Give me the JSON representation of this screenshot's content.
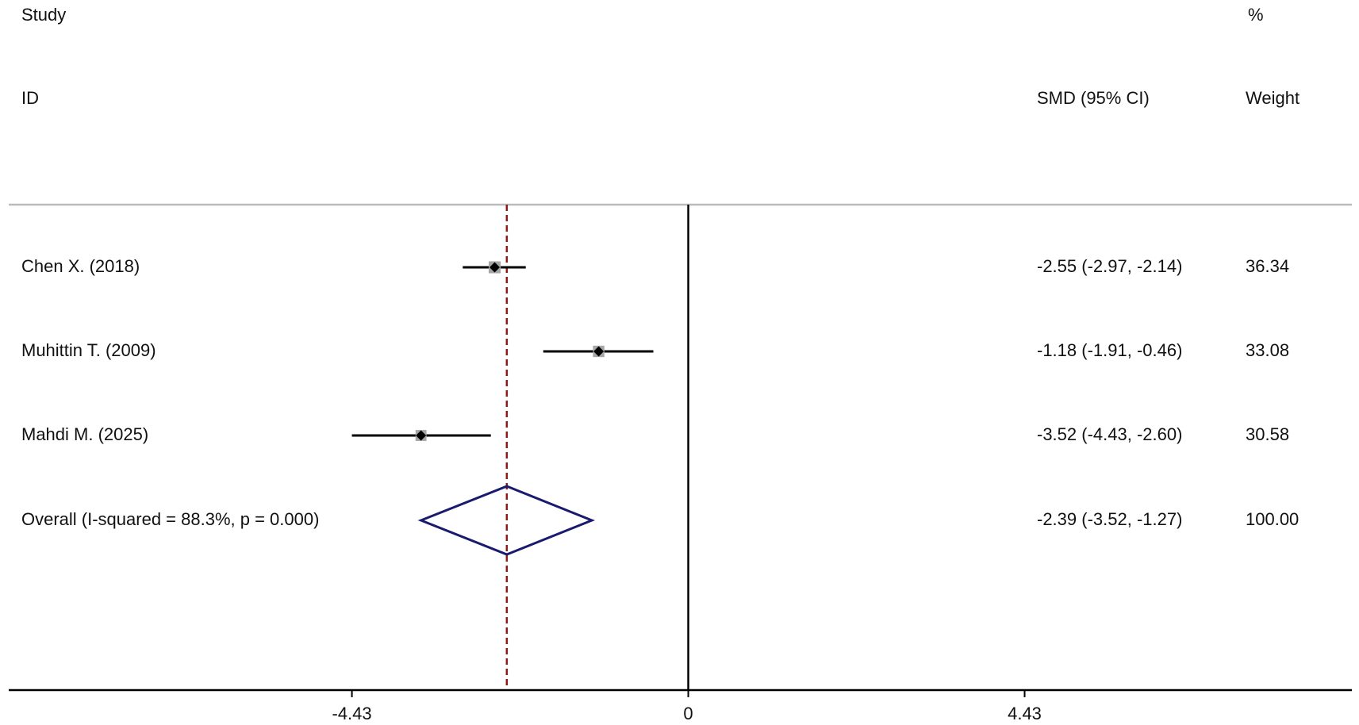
{
  "chart_data": {
    "type": "forest",
    "headers": {
      "study": "Study",
      "id": "ID",
      "effect": "SMD (95% CI)",
      "pct": "%",
      "weight": "Weight"
    },
    "studies": [
      {
        "name": "Chen X. (2018)",
        "es": -2.55,
        "lo": -2.97,
        "hi": -2.14,
        "ci_label": "-2.55 (-2.97, -2.14)",
        "weight": 36.34
      },
      {
        "name": "Muhittin T. (2009)",
        "es": -1.18,
        "lo": -1.91,
        "hi": -0.46,
        "ci_label": "-1.18 (-1.91, -0.46)",
        "weight": 33.08
      },
      {
        "name": "Mahdi M. (2025)",
        "es": -3.52,
        "lo": -4.43,
        "hi": -2.6,
        "ci_label": "-3.52 (-4.43, -2.60)",
        "weight": 30.58
      }
    ],
    "overall": {
      "name": "Overall  (I-squared = 88.3%, p = 0.000)",
      "es": -2.39,
      "lo": -3.52,
      "hi": -1.27,
      "ci_label": "-2.39 (-3.52, -1.27)",
      "weight": {
        "value": 100,
        "label": "100.00"
      }
    },
    "xlim": [
      -8.95,
      8.74
    ],
    "xticks": [
      -4.43,
      0,
      4.43
    ],
    "colors": {
      "ci": "#000000",
      "square": "#a6a6a6",
      "overall": "#1a1a6e",
      "reference": "#8b1a1a"
    }
  }
}
